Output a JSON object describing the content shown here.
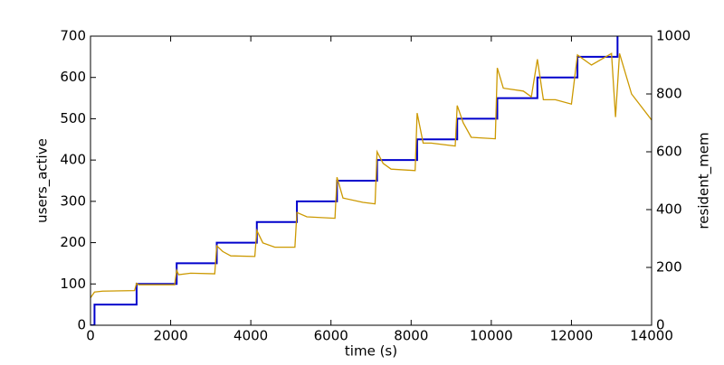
{
  "chart_data": {
    "type": "line",
    "xlabel": "time (s)",
    "ylabel": "users_active",
    "y2label": "resident_mem",
    "xlim": [
      0,
      14000
    ],
    "xticks": [
      0,
      2000,
      4000,
      6000,
      8000,
      10000,
      12000,
      14000
    ],
    "ylim": [
      0,
      700
    ],
    "yticks": [
      0,
      100,
      200,
      300,
      400,
      500,
      600,
      700
    ],
    "y2lim": [
      0,
      1000
    ],
    "y2ticks": [
      0,
      200,
      400,
      600,
      800,
      1000
    ],
    "series": [
      {
        "name": "users_active",
        "color": "#0000cc",
        "x": [
          0,
          100,
          100,
          1150,
          1150,
          2150,
          2150,
          3150,
          3150,
          4150,
          4150,
          5150,
          5150,
          6150,
          6150,
          7150,
          7150,
          8150,
          8150,
          9150,
          9150,
          10150,
          10150,
          11150,
          11150,
          12150,
          12150,
          13150,
          13150
        ],
        "values": [
          0,
          0,
          50,
          50,
          100,
          100,
          150,
          150,
          200,
          200,
          250,
          250,
          300,
          300,
          350,
          350,
          400,
          400,
          450,
          450,
          500,
          500,
          550,
          550,
          600,
          600,
          650,
          650,
          700
        ]
      },
      {
        "name": "resident_mem",
        "color": "#cc9900",
        "axis": "y2",
        "x": [
          0,
          100,
          300,
          1100,
          1150,
          1200,
          2100,
          2150,
          2200,
          2500,
          3100,
          3150,
          3300,
          3500,
          4100,
          4150,
          4300,
          4600,
          5100,
          5150,
          5400,
          6100,
          6150,
          6300,
          6800,
          7100,
          7150,
          7300,
          7500,
          8100,
          8150,
          8300,
          8500,
          9100,
          9150,
          9300,
          9500,
          10100,
          10150,
          10300,
          10800,
          11000,
          11150,
          11300,
          11600,
          12000,
          12150,
          12500,
          13000,
          13100,
          13200,
          13500,
          14000
        ],
        "values": [
          95,
          115,
          118,
          120,
          145,
          140,
          140,
          190,
          175,
          180,
          178,
          275,
          255,
          240,
          238,
          328,
          285,
          270,
          270,
          390,
          375,
          370,
          512,
          440,
          425,
          420,
          600,
          560,
          540,
          535,
          734,
          630,
          630,
          620,
          760,
          700,
          650,
          645,
          890,
          820,
          810,
          790,
          920,
          780,
          780,
          765,
          935,
          900,
          940,
          720,
          940,
          800,
          710
        ]
      }
    ]
  }
}
